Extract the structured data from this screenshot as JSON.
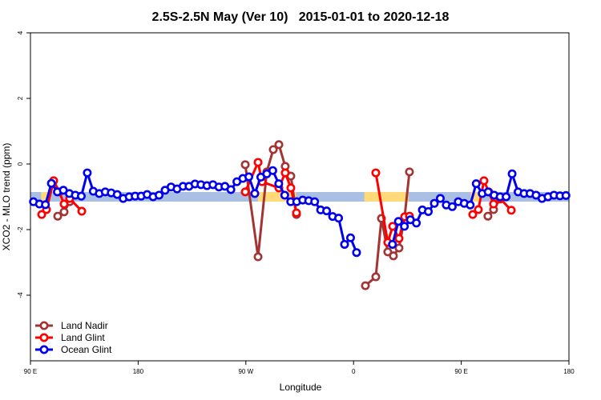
{
  "chart_data": {
    "type": "line",
    "title": "2.5S-2.5N May (Ver 10)   2015-01-01 to 2020-12-18",
    "xlabel": "Longitude",
    "ylabel": "XCO2 - MLO trend (ppm)",
    "xlim": [
      90,
      540
    ],
    "ylim": [
      -6,
      4
    ],
    "xticks": [
      {
        "value": 90,
        "label": "90 E"
      },
      180,
      {
        "value": 270,
        "label": "90 W"
      },
      {
        "value": 360,
        "label": "0"
      },
      {
        "value": 450,
        "label": "90 E"
      },
      {
        "value": 540,
        "label": "180"
      }
    ],
    "yticks": [
      -4,
      -2,
      0,
      2,
      4
    ],
    "legend": "bottom-left",
    "band_y": -1,
    "bands": [
      {
        "x": [
          90,
          540
        ],
        "color": "#a9bfe3"
      },
      {
        "x": [
          99,
          105
        ],
        "color": "#ffd97a"
      },
      {
        "x": [
          280,
          312
        ],
        "color": "#ffd97a"
      },
      {
        "x": [
          369,
          406
        ],
        "color": "#ffd97a"
      },
      {
        "x": [
          458,
          466
        ],
        "color": "#ffd97a"
      }
    ],
    "series": [
      {
        "name": "Land Nadir",
        "color": "#a33434",
        "x": [
          112.8,
          118.1,
          122.8,
          200,
          269.5,
          280.2,
          287.5,
          292.9,
          297.6,
          302.9,
          307.6,
          312.3,
          340,
          369.9,
          378.6,
          383.3,
          388.6,
          393.3,
          398,
          402.7,
          406.7,
          440,
          472.3,
          477,
          482.4
        ],
        "values": [
          -1.59,
          -1.46,
          -1.15,
          null,
          -0.02,
          -2.83,
          -0.24,
          0.44,
          0.59,
          -0.07,
          -0.37,
          -1.54,
          null,
          -3.71,
          -3.44,
          -1.66,
          -2.68,
          -2.8,
          -2.56,
          -1.61,
          -0.24,
          null,
          -1.59,
          -1.39,
          -1.07
        ]
      },
      {
        "name": "Land Glint",
        "color": "#ff0000",
        "x": [
          99.4,
          103.4,
          109.4,
          114.1,
          118.1,
          122.8,
          132.9,
          200,
          269.5,
          280.2,
          283.5,
          297.6,
          302.9,
          307.6,
          312.3,
          340,
          378.6,
          388.6,
          392.7,
          398,
          402.7,
          406.7,
          440,
          459.6,
          464.3,
          469,
          473,
          477,
          482.4,
          491.8
        ],
        "values": [
          -1.54,
          -1.39,
          -0.51,
          -0.85,
          -1.22,
          -1.05,
          -1.44,
          null,
          -0.85,
          0.05,
          -0.54,
          -0.73,
          -0.27,
          -0.73,
          -1.49,
          null,
          -0.27,
          -2.39,
          -1.9,
          -2.27,
          -1.61,
          -1.59,
          null,
          -1.54,
          -1.39,
          -0.51,
          -0.85,
          -1.22,
          -1.05,
          -1.41
        ]
      },
      {
        "name": "Ocean Glint",
        "color": "#0000ee",
        "x": [
          92.5,
          97.5,
          102.5,
          107.5,
          112.5,
          117.5,
          122.5,
          127.5,
          132.5,
          137.5,
          142.5,
          147.5,
          152.5,
          157.5,
          162.5,
          167.5,
          172.5,
          177.5,
          182.5,
          187.5,
          192.5,
          197.5,
          202.5,
          207.5,
          212.5,
          217.5,
          222.5,
          227.5,
          232.5,
          237.5,
          242.5,
          247.5,
          252.5,
          257.5,
          262.5,
          267.5,
          272.5,
          277.5,
          282.5,
          287.5,
          292.5,
          297.5,
          302.5,
          307.5,
          312.5,
          317.5,
          322.5,
          327.5,
          332.5,
          337.5,
          342.5,
          347.5,
          352.5,
          357.5,
          362.5,
          375,
          392.5,
          397.5,
          402.5,
          407.5,
          412.5,
          417.5,
          422.5,
          427.5,
          432.5,
          437.5,
          442.5,
          447.5,
          452.5,
          457.5,
          462.5,
          467.5,
          472.5,
          477.5,
          482.5,
          487.5,
          492.5,
          497.5,
          502.5,
          507.5,
          512.5,
          517.5,
          522.5,
          527.5,
          532.5,
          537.5
        ],
        "values": [
          -1.15,
          -1.22,
          -1.24,
          -0.59,
          -0.85,
          -0.8,
          -0.9,
          -0.95,
          -0.98,
          -0.27,
          -0.83,
          -0.9,
          -0.85,
          -0.88,
          -0.93,
          -1.05,
          -1.0,
          -0.98,
          -0.98,
          -0.93,
          -1.0,
          -0.95,
          -0.8,
          -0.7,
          -0.76,
          -0.68,
          -0.68,
          -0.61,
          -0.63,
          -0.66,
          -0.63,
          -0.7,
          -0.68,
          -0.78,
          -0.54,
          -0.44,
          -0.39,
          -0.9,
          -0.4,
          -0.3,
          -0.2,
          -0.6,
          -0.95,
          -1.15,
          -1.15,
          -1.1,
          -1.12,
          -1.15,
          -1.4,
          -1.43,
          -1.6,
          -1.65,
          -2.45,
          -2.25,
          -2.7,
          null,
          -2.45,
          -1.75,
          -1.9,
          -1.7,
          -1.8,
          -1.4,
          -1.45,
          -1.2,
          -1.05,
          -1.25,
          -1.3,
          -1.15,
          -1.2,
          -1.25,
          -0.6,
          -0.9,
          -0.85,
          -0.95,
          -1.0,
          -1.0,
          -0.3,
          -0.85,
          -0.9,
          -0.9,
          -0.95,
          -1.05,
          -1.0,
          -0.95,
          -0.97,
          -0.96
        ]
      }
    ]
  }
}
